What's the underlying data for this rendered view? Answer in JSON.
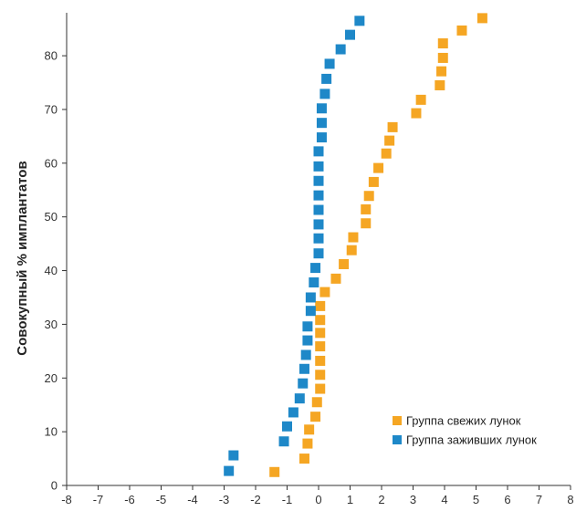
{
  "chart_data": {
    "type": "scatter",
    "ylabel": "Совокупный % имплантатов",
    "xlabel": "",
    "xlim": [
      -8,
      8
    ],
    "ylim": [
      0,
      88
    ],
    "xticks": [
      -8,
      -7,
      -6,
      -5,
      -4,
      -3,
      -2,
      -1,
      0,
      1,
      2,
      3,
      4,
      5,
      6,
      7,
      8
    ],
    "xtick_labels": [
      "-8",
      "-7",
      "-6",
      "-5",
      "-4",
      "-3",
      "-2",
      "-1",
      "0",
      "1",
      "2",
      "3",
      "4",
      "5",
      "6",
      "7",
      "8"
    ],
    "yticks": [
      0,
      10,
      20,
      30,
      40,
      50,
      60,
      70,
      80
    ],
    "ytick_labels": [
      "0",
      "10",
      "20",
      "30",
      "40",
      "50",
      "60",
      "70",
      "80"
    ],
    "grid": false,
    "legend_position": "bottom-right",
    "series": [
      {
        "name": "Группа свежих лунок",
        "color": "#F5A623",
        "marker": "square",
        "points": [
          [
            -1.4,
            2.5
          ],
          [
            -0.45,
            5
          ],
          [
            -0.35,
            7.8
          ],
          [
            -0.3,
            10.4
          ],
          [
            -0.1,
            12.8
          ],
          [
            -0.05,
            15.5
          ],
          [
            0.05,
            18
          ],
          [
            0.05,
            20.6
          ],
          [
            0.05,
            23.2
          ],
          [
            0.05,
            25.9
          ],
          [
            0.05,
            28.4
          ],
          [
            0.05,
            30.8
          ],
          [
            0.05,
            33.4
          ],
          [
            0.2,
            36
          ],
          [
            0.55,
            38.5
          ],
          [
            0.8,
            41.2
          ],
          [
            1.05,
            43.8
          ],
          [
            1.1,
            46.2
          ],
          [
            1.5,
            48.8
          ],
          [
            1.5,
            51.4
          ],
          [
            1.6,
            53.9
          ],
          [
            1.75,
            56.5
          ],
          [
            1.9,
            59.1
          ],
          [
            2.15,
            61.8
          ],
          [
            2.25,
            64.2
          ],
          [
            2.35,
            66.7
          ],
          [
            3.1,
            69.3
          ],
          [
            3.25,
            71.8
          ],
          [
            3.85,
            74.5
          ],
          [
            3.9,
            77.1
          ],
          [
            3.95,
            79.6
          ],
          [
            3.95,
            82.3
          ],
          [
            4.55,
            84.7
          ],
          [
            5.2,
            87
          ]
        ]
      },
      {
        "name": "Группа заживших лунок",
        "color": "#1E88C8",
        "marker": "square",
        "points": [
          [
            -2.85,
            2.7
          ],
          [
            -2.7,
            5.6
          ],
          [
            -1.1,
            8.2
          ],
          [
            -1.0,
            11
          ],
          [
            -0.8,
            13.6
          ],
          [
            -0.6,
            16.2
          ],
          [
            -0.5,
            19
          ],
          [
            -0.45,
            21.7
          ],
          [
            -0.4,
            24.3
          ],
          [
            -0.35,
            27
          ],
          [
            -0.35,
            29.6
          ],
          [
            -0.25,
            32.5
          ],
          [
            -0.25,
            35
          ],
          [
            -0.15,
            37.8
          ],
          [
            -0.1,
            40.5
          ],
          [
            0.0,
            43.2
          ],
          [
            0.0,
            46
          ],
          [
            0.0,
            48.6
          ],
          [
            0.0,
            51.3
          ],
          [
            0.0,
            54
          ],
          [
            0.0,
            56.7
          ],
          [
            0.0,
            59.4
          ],
          [
            0.0,
            62.2
          ],
          [
            0.1,
            64.8
          ],
          [
            0.1,
            67.5
          ],
          [
            0.1,
            70.2
          ],
          [
            0.2,
            72.9
          ],
          [
            0.25,
            75.7
          ],
          [
            0.35,
            78.5
          ],
          [
            0.7,
            81.2
          ],
          [
            1.0,
            83.9
          ],
          [
            1.3,
            86.5
          ]
        ]
      }
    ]
  }
}
